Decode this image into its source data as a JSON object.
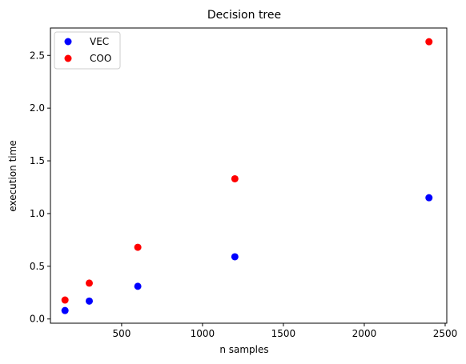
{
  "chart_data": {
    "type": "scatter",
    "title": "Decision tree",
    "xlabel": "n samples",
    "ylabel": "execution time",
    "xlim": [
      60,
      2510
    ],
    "ylim": [
      -0.04,
      2.76
    ],
    "xticks": [
      500,
      1000,
      1500,
      2000,
      2500
    ],
    "yticks": [
      0.0,
      0.5,
      1.0,
      1.5,
      2.0,
      2.5
    ],
    "xtick_labels": [
      "500",
      "1000",
      "1500",
      "2000",
      "2500"
    ],
    "ytick_labels": [
      "0.0",
      "0.5",
      "1.0",
      "1.5",
      "2.0",
      "2.5"
    ],
    "grid": false,
    "legend": "top-left",
    "series": [
      {
        "name": "VEC",
        "color": "#0000ff",
        "points": [
          {
            "x": 150,
            "y": 0.08
          },
          {
            "x": 300,
            "y": 0.17
          },
          {
            "x": 600,
            "y": 0.31
          },
          {
            "x": 1200,
            "y": 0.59
          },
          {
            "x": 2400,
            "y": 1.15
          }
        ]
      },
      {
        "name": "COO",
        "color": "#ff0000",
        "points": [
          {
            "x": 150,
            "y": 0.18
          },
          {
            "x": 300,
            "y": 0.34
          },
          {
            "x": 600,
            "y": 0.68
          },
          {
            "x": 1200,
            "y": 1.33
          },
          {
            "x": 2400,
            "y": 2.63
          }
        ]
      }
    ]
  }
}
